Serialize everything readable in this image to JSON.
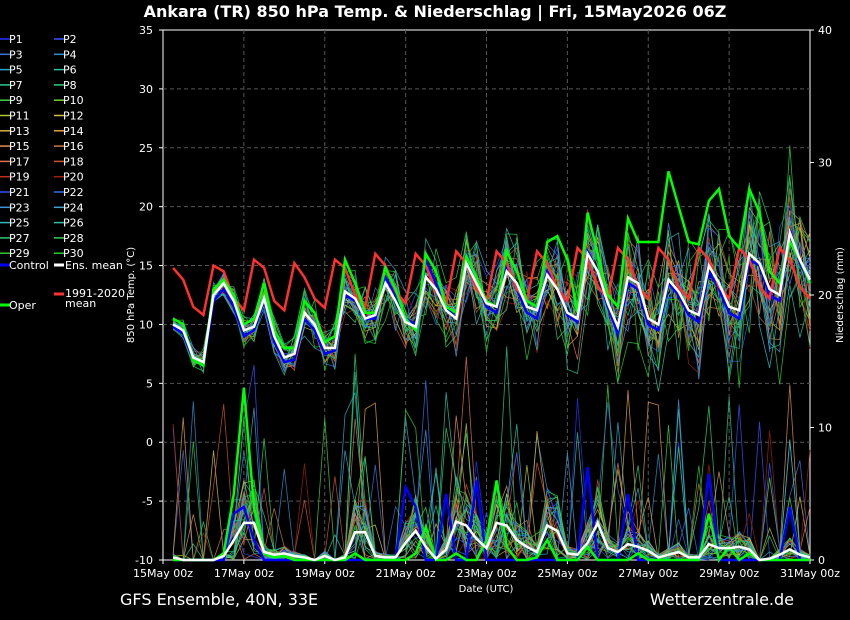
{
  "header": {
    "title": "Ankara  (TR)  850 hPa Temp. & Niederschlag | Fri, 15May2026 06Z"
  },
  "footer": {
    "model": "GFS Ensemble, 40N, 33E",
    "site": "Wetterzentrale.de"
  },
  "legend": {
    "members": [
      {
        "label": "P1",
        "color": "#2233ff"
      },
      {
        "label": "P2",
        "color": "#3355ff"
      },
      {
        "label": "P3",
        "color": "#3f6fe0"
      },
      {
        "label": "P4",
        "color": "#2a8fd0"
      },
      {
        "label": "P5",
        "color": "#2aa8c8"
      },
      {
        "label": "P6",
        "color": "#2ac0a0"
      },
      {
        "label": "P7",
        "color": "#2ac890"
      },
      {
        "label": "P8",
        "color": "#2ad070"
      },
      {
        "label": "P9",
        "color": "#40d040"
      },
      {
        "label": "P10",
        "color": "#70d020"
      },
      {
        "label": "P11",
        "color": "#b0c830"
      },
      {
        "label": "P12",
        "color": "#d0c040"
      },
      {
        "label": "P13",
        "color": "#d8b040"
      },
      {
        "label": "P14",
        "color": "#e0a040"
      },
      {
        "label": "P15",
        "color": "#e09050"
      },
      {
        "label": "P16",
        "color": "#c87840"
      },
      {
        "label": "P17",
        "color": "#e07050"
      },
      {
        "label": "P18",
        "color": "#d05030"
      },
      {
        "label": "P19",
        "color": "#c03020"
      },
      {
        "label": "P20",
        "color": "#a02010"
      },
      {
        "label": "P21",
        "color": "#3050ff"
      },
      {
        "label": "P22",
        "color": "#3070e0"
      },
      {
        "label": "P23",
        "color": "#4090e0"
      },
      {
        "label": "P24",
        "color": "#40a0d0"
      },
      {
        "label": "P25",
        "color": "#30b8c0"
      },
      {
        "label": "P26",
        "color": "#30c0a0"
      },
      {
        "label": "P27",
        "color": "#30c870"
      },
      {
        "label": "P28",
        "color": "#30d050"
      },
      {
        "label": "P29",
        "color": "#30c830"
      },
      {
        "label": "P30",
        "color": "#20d020"
      }
    ],
    "control": {
      "label": "Control",
      "color": "#0000ff"
    },
    "ens_mean": {
      "label": "Ens. mean",
      "color": "#ffffff"
    },
    "oper": {
      "label": "Oper",
      "color": "#00ff00"
    },
    "climate_line1": "1991-2020",
    "climate_line2": "mean",
    "climate_color": "#ff3030"
  },
  "chart_data": {
    "type": "line",
    "ylabel_left": "850 hPa Temp. (°C)",
    "ylabel_right": "Niederschlag (mm)",
    "xlabel": "Date (UTC)",
    "ylim_left": [
      -10,
      35
    ],
    "ylim_right": [
      0,
      40
    ],
    "yticks_left": [
      "35",
      "30",
      "25",
      "20",
      "15",
      "10",
      "5",
      "0",
      "-5",
      "-10"
    ],
    "yticks_right": [
      "40",
      "30",
      "20",
      "10",
      "0"
    ],
    "xticks": [
      "15May 00z",
      "17May 00z",
      "19May 00z",
      "21May 00z",
      "23May 00z",
      "25May 00z",
      "27May 00z",
      "29May 00z",
      "31May 00z"
    ],
    "x_range_hours": [
      0,
      384
    ],
    "grid": true,
    "legend_position": "left-outside",
    "series": [
      {
        "name": "Ens. mean",
        "color": "#ffffff",
        "hours": [
          6,
          12,
          18,
          24,
          30,
          36,
          42,
          48,
          54,
          60,
          66,
          72,
          78,
          84,
          90,
          96,
          102,
          108,
          114,
          120,
          126,
          132,
          138,
          144,
          150,
          156,
          162,
          168,
          174,
          180,
          186,
          192,
          198,
          204,
          210,
          216,
          222,
          228,
          234,
          240,
          246,
          252,
          258,
          264,
          270,
          276,
          282,
          288,
          294,
          300,
          306,
          312,
          318,
          324,
          330,
          336,
          342,
          348,
          354,
          360,
          366,
          372,
          378,
          384
        ],
        "values": [
          10,
          9.5,
          7.2,
          6.8,
          12.5,
          13.5,
          12,
          9.5,
          9.8,
          12.2,
          9,
          7.2,
          7.5,
          11,
          10,
          8,
          8,
          12.8,
          12.2,
          10.5,
          10.8,
          13.5,
          12,
          10.2,
          9.8,
          14,
          13,
          11.2,
          10.5,
          15.2,
          13.5,
          11.8,
          11.5,
          14.5,
          13.5,
          11.5,
          11.2,
          14.2,
          13,
          11,
          10.5,
          16,
          14.5,
          11.8,
          9.8,
          14,
          13.5,
          10.5,
          10,
          13.8,
          12.8,
          11.2,
          10.8,
          15,
          13.5,
          11.5,
          11.2,
          16,
          15.2,
          13,
          12.5,
          17.8,
          15.5,
          13.8
        ]
      },
      {
        "name": "1991-2020 mean",
        "color": "#ff3030",
        "hours": [
          6,
          12,
          18,
          24,
          30,
          36,
          42,
          48,
          54,
          60,
          66,
          72,
          78,
          84,
          90,
          96,
          102,
          108,
          114,
          120,
          126,
          132,
          138,
          144,
          150,
          156,
          162,
          168,
          174,
          180,
          186,
          192,
          198,
          204,
          210,
          216,
          222,
          228,
          234,
          240,
          246,
          252,
          258,
          264,
          270,
          276,
          282,
          288,
          294,
          300,
          306,
          312,
          318,
          324,
          330,
          336,
          342,
          348,
          354,
          360,
          366,
          372,
          378,
          384
        ],
        "values": [
          14.8,
          13.8,
          11.5,
          10.8,
          15,
          14.5,
          12.2,
          11.2,
          15.5,
          14.8,
          12,
          11.2,
          15.2,
          14,
          12.2,
          11.4,
          15.5,
          14.8,
          12.5,
          11.5,
          16,
          15,
          12.8,
          11.8,
          16,
          15,
          12.8,
          11.8,
          16.2,
          15.2,
          13,
          12,
          16.2,
          15.2,
          13,
          12,
          16.2,
          15.2,
          13,
          12,
          16.5,
          15.5,
          13.2,
          12.2,
          16.5,
          15.5,
          13.2,
          12.2,
          16.5,
          15.5,
          13.2,
          12.2,
          16.5,
          15.5,
          13.2,
          12.2,
          16.5,
          15.5,
          13.2,
          12.2,
          16.5,
          15.5,
          13.2,
          12.2
        ]
      },
      {
        "name": "Oper",
        "color": "#00ff00",
        "hours": [
          6,
          12,
          18,
          24,
          30,
          36,
          42,
          48,
          54,
          60,
          66,
          72,
          78,
          84,
          90,
          96,
          102,
          108,
          114,
          120,
          126,
          132,
          138,
          144,
          150,
          156,
          162,
          168,
          174,
          180,
          186,
          192,
          198,
          204,
          210,
          216,
          222,
          228,
          234,
          240,
          246,
          252,
          258,
          264,
          270,
          276,
          282,
          288,
          294,
          300,
          306,
          312,
          318,
          324,
          330,
          336,
          342,
          348,
          354,
          360,
          366,
          372,
          378,
          384
        ],
        "values": [
          10.5,
          10,
          7,
          6.5,
          13,
          13.8,
          12.5,
          10,
          10.5,
          13.5,
          9.5,
          8,
          8,
          12,
          11,
          8.5,
          9,
          15.5,
          13.5,
          11,
          11,
          14.8,
          13,
          10.5,
          9.5,
          16,
          14.5,
          11.5,
          11,
          15.8,
          14,
          12,
          11.5,
          16.2,
          14.5,
          12,
          11.5,
          17,
          17.5,
          15.5,
          11,
          19.5,
          16,
          12.5,
          11.5,
          19,
          17,
          17,
          17,
          23,
          20,
          17,
          16.8,
          20.5,
          21.5,
          17.5,
          16.5,
          21.5,
          19.5,
          14.5,
          13.5,
          17,
          15.5,
          13.5
        ]
      },
      {
        "name": "Control",
        "color": "#0000ff",
        "hours": [
          6,
          12,
          18,
          24,
          30,
          36,
          42,
          48,
          54,
          60,
          66,
          72,
          78,
          84,
          90,
          96,
          102,
          108,
          114,
          120,
          126,
          132,
          138,
          144,
          150,
          156,
          162,
          168,
          174,
          180,
          186,
          192,
          198,
          204,
          210,
          216,
          222,
          228,
          234,
          240,
          246,
          252,
          258,
          264,
          270,
          276,
          282,
          288,
          294,
          300,
          306,
          312,
          318,
          324,
          330,
          336,
          342,
          348,
          354,
          360,
          366,
          372,
          378,
          384
        ],
        "values": [
          9.8,
          9.2,
          7,
          6.5,
          12,
          13,
          11.5,
          9,
          9.5,
          12,
          8.5,
          6.8,
          7,
          10.5,
          9.5,
          7.5,
          7.8,
          12.5,
          12,
          10.5,
          10.5,
          14,
          12.5,
          10.5,
          10,
          15.5,
          13.5,
          11.5,
          10.5,
          16,
          13.5,
          11.5,
          11,
          15,
          13,
          11,
          10.5,
          14.5,
          13,
          10.8,
          10.2,
          16.2,
          14.5,
          11.5,
          9.2,
          13.5,
          13,
          10,
          9.5,
          13.5,
          12.5,
          10.8,
          10.2,
          14.5,
          13,
          11,
          10.5,
          15.5,
          15,
          12.5,
          12,
          18,
          15.2,
          13.5
        ]
      }
    ],
    "precip_series": [
      {
        "name": "Ens. mean precip",
        "color": "#ffffff",
        "hours": [
          6,
          12,
          18,
          24,
          30,
          36,
          42,
          48,
          54,
          60,
          66,
          72,
          78,
          84,
          90,
          96,
          102,
          108,
          114,
          120,
          126,
          132,
          138,
          144,
          150,
          156,
          162,
          168,
          174,
          180,
          186,
          192,
          198,
          204,
          210,
          216,
          222,
          228,
          234,
          240,
          246,
          252,
          258,
          264,
          270,
          276,
          282,
          288,
          294,
          300,
          306,
          312,
          318,
          324,
          330,
          336,
          342,
          348,
          354,
          360,
          366,
          372,
          378,
          384
        ],
        "values": [
          0.2,
          0,
          0,
          0,
          0,
          0.3,
          1.5,
          2.8,
          2.8,
          0.6,
          0.4,
          0.5,
          0.3,
          0.2,
          0,
          0.3,
          0,
          0.2,
          2.1,
          2.1,
          0.3,
          0.2,
          0.2,
          1.3,
          2.2,
          1.0,
          0.1,
          0.8,
          2.9,
          2.6,
          1.6,
          0.9,
          2.8,
          2.6,
          1.5,
          1.0,
          0.6,
          2.6,
          2.2,
          0.5,
          0.4,
          1.3,
          2.8,
          0.9,
          0.6,
          1.2,
          1.0,
          0.7,
          0.2,
          0.4,
          0.6,
          0.2,
          0.2,
          1.2,
          0.9,
          0.9,
          1.0,
          0.8,
          0,
          0.1,
          0.4,
          0.8,
          0.4,
          0.2
        ]
      },
      {
        "name": "Oper precip",
        "color": "#00ff00",
        "hours": [
          6,
          12,
          18,
          24,
          30,
          36,
          42,
          48,
          54,
          60,
          66,
          72,
          78,
          84,
          90,
          96,
          102,
          108,
          114,
          120,
          126,
          132,
          138,
          144,
          150,
          156,
          162,
          168,
          174,
          180,
          186,
          192,
          198,
          204,
          210,
          216,
          222,
          228,
          234,
          240,
          246,
          252,
          258,
          264,
          270,
          276,
          282,
          288,
          294,
          300,
          306,
          312,
          318,
          324,
          330,
          336,
          342,
          348,
          354,
          360,
          366,
          372,
          378,
          384
        ],
        "values": [
          0,
          0,
          0,
          0,
          0,
          0.5,
          5,
          13,
          4,
          0.5,
          0.2,
          0.3,
          0,
          0,
          0,
          0,
          0,
          0,
          0.5,
          0,
          0,
          0,
          0,
          0,
          0.5,
          2.5,
          0,
          0,
          0.5,
          0,
          0,
          1.5,
          6,
          1,
          0,
          0,
          0.2,
          1.5,
          0,
          0,
          0,
          1,
          0,
          0,
          0,
          0,
          0.5,
          0,
          0,
          0,
          0,
          0,
          0,
          3.5,
          0,
          1,
          0,
          0.5,
          0,
          0,
          0,
          0,
          0,
          0
        ]
      },
      {
        "name": "Control precip",
        "color": "#0000ff",
        "hours": [
          6,
          12,
          18,
          24,
          30,
          36,
          42,
          48,
          54,
          60,
          66,
          72,
          78,
          84,
          90,
          96,
          102,
          108,
          114,
          120,
          126,
          132,
          138,
          144,
          150,
          156,
          162,
          168,
          174,
          180,
          186,
          192,
          198,
          204,
          210,
          216,
          222,
          228,
          234,
          240,
          246,
          252,
          258,
          264,
          270,
          276,
          282,
          288,
          294,
          300,
          306,
          312,
          318,
          324,
          330,
          336,
          342,
          348,
          354,
          360,
          366,
          372,
          378,
          384
        ],
        "values": [
          0,
          0,
          0,
          0,
          0,
          0,
          3.5,
          4,
          1.5,
          0,
          0,
          0,
          0,
          0,
          0,
          0,
          0,
          0,
          0,
          0,
          0,
          0,
          0,
          5.5,
          4,
          0,
          0,
          5,
          0,
          0,
          6,
          0,
          0,
          0,
          0,
          0,
          0,
          0,
          0,
          0,
          0,
          7,
          0,
          0,
          0,
          5,
          0,
          0,
          0,
          0,
          0,
          0,
          0,
          6.5,
          0,
          0,
          0,
          0,
          0,
          0,
          0,
          4,
          0,
          0
        ]
      }
    ]
  }
}
